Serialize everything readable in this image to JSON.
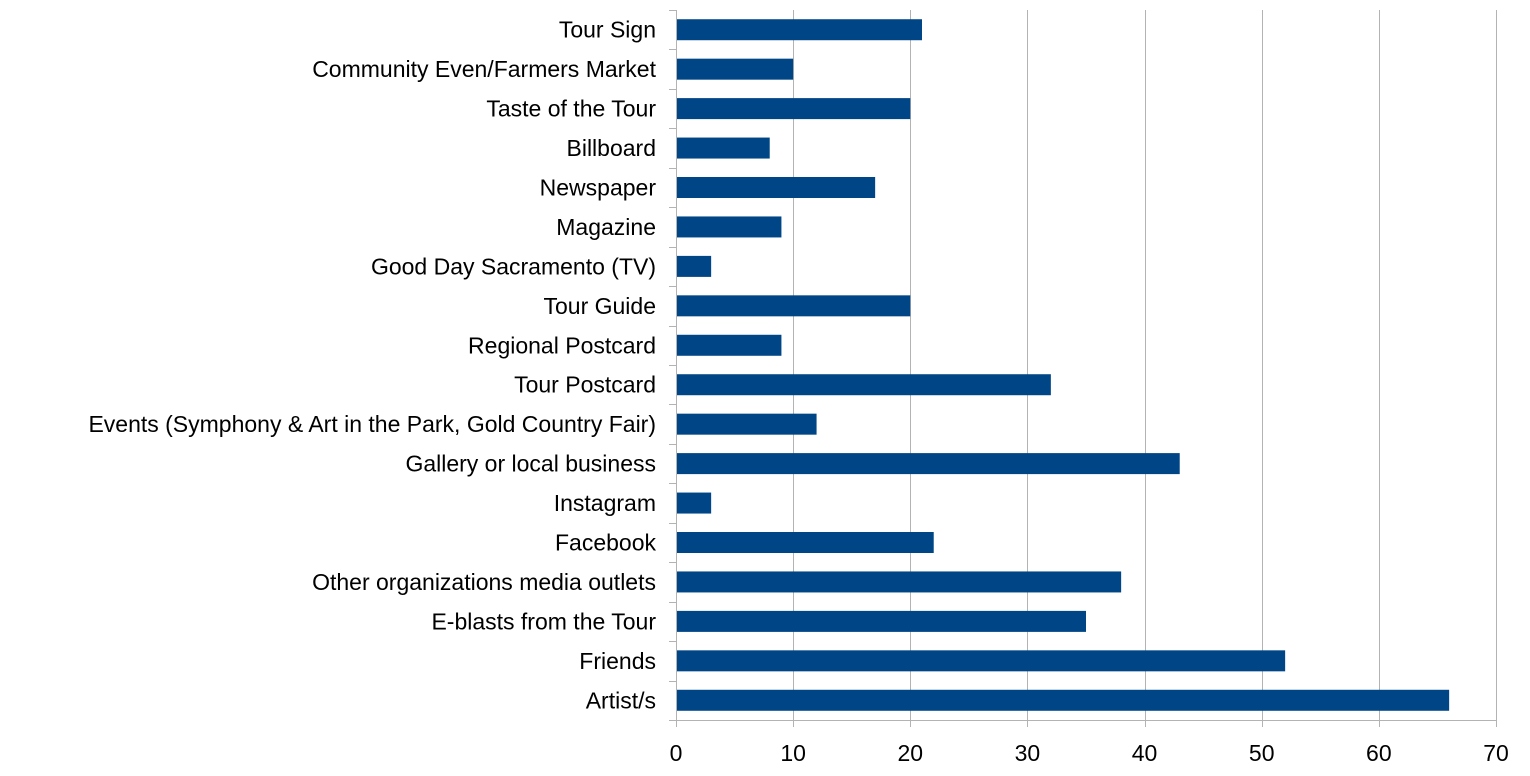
{
  "chart_data": {
    "type": "bar",
    "orientation": "horizontal",
    "title": "",
    "xlabel": "",
    "ylabel": "",
    "categories": [
      "Tour Sign",
      "Community Even/Farmers Market",
      "Taste of the Tour",
      "Billboard",
      "Newspaper",
      "Magazine",
      "Good Day Sacramento (TV)",
      "Tour Guide",
      "Regional Postcard",
      "Tour Postcard",
      "Events (Symphony & Art in the Park, Gold Country Fair)",
      "Gallery or local business",
      "Instagram",
      "Facebook",
      "Other organizations media outlets",
      "E-blasts from the Tour",
      "Friends",
      "Artist/s"
    ],
    "values": [
      21,
      10,
      20,
      8,
      17,
      9,
      3,
      20,
      9,
      32,
      12,
      43,
      3,
      22,
      38,
      35,
      52,
      66
    ],
    "xlim": [
      0,
      70
    ],
    "x_ticks": [
      0,
      10,
      20,
      30,
      40,
      50,
      60,
      70
    ],
    "grid": "vertical",
    "legend": "none",
    "colors": {
      "bar": "#004586",
      "grid": "#b3b3b3",
      "axis": "#b3b3b3",
      "text": "#000000"
    }
  }
}
